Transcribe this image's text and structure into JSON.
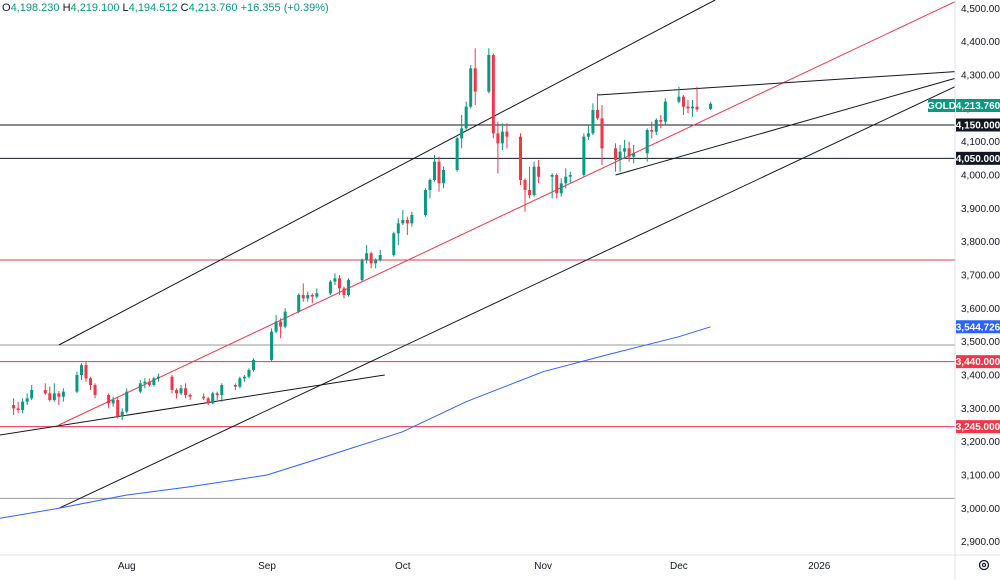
{
  "header": {
    "open_key": "O",
    "open": "4,198.230",
    "high_key": "H",
    "high": "4,219.100",
    "low_key": "L",
    "low": "4,194.512",
    "close_key": "C",
    "close": "4,213.760",
    "change": "+16.355 (+0.39%)"
  },
  "symbol_tag": {
    "label": "GOLD",
    "value": "4,213.760",
    "color": "#089981"
  },
  "colors": {
    "up": "#089981",
    "down": "#f23645",
    "ma": "#2962ff",
    "trend": "#131722",
    "level_red": "#f23645",
    "grid": "#e0e3eb"
  },
  "x_axis_labels": [
    {
      "label": "Aug",
      "date": "2025-08-01"
    },
    {
      "label": "Sep",
      "date": "2025-09-01"
    },
    {
      "label": "Oct",
      "date": "2025-10-01"
    },
    {
      "label": "Nov",
      "date": "2025-11-01"
    },
    {
      "label": "Dec",
      "date": "2025-12-01"
    },
    {
      "label": "2026",
      "date": "2026-01-01"
    }
  ],
  "y_axis_labels": [
    "4,500.000",
    "4,400.000",
    "4,300.000",
    "4,200.000",
    "4,100.000",
    "4,000.000",
    "3,900.000",
    "3,800.000",
    "3,700.000",
    "3,600.000",
    "3,500.000",
    "3,400.000",
    "3,300.000",
    "3,200.000",
    "3,100.000",
    "3,000.000",
    "2,900.000"
  ],
  "price_tags": [
    {
      "value": "4,150.000",
      "bg": "#131722"
    },
    {
      "value": "4,050.000",
      "bg": "#131722"
    },
    {
      "value": "3,544.726",
      "bg": "#2962ff"
    },
    {
      "value": "3,440.000",
      "bg": "#f23645"
    },
    {
      "value": "3,245.000",
      "bg": "#f23645"
    }
  ],
  "chart_data": {
    "type": "candlestick",
    "y_range": [
      2860,
      4525
    ],
    "x_range": [
      "2025-07-04",
      "2026-01-31"
    ],
    "series": [
      {
        "date": "2025-07-07",
        "o": 3310,
        "h": 3330,
        "l": 3280,
        "c": 3300
      },
      {
        "date": "2025-07-08",
        "o": 3300,
        "h": 3320,
        "l": 3285,
        "c": 3295
      },
      {
        "date": "2025-07-09",
        "o": 3295,
        "h": 3330,
        "l": 3285,
        "c": 3320
      },
      {
        "date": "2025-07-10",
        "o": 3320,
        "h": 3345,
        "l": 3310,
        "c": 3330
      },
      {
        "date": "2025-07-11",
        "o": 3330,
        "h": 3370,
        "l": 3325,
        "c": 3355
      },
      {
        "date": "2025-07-14",
        "o": 3355,
        "h": 3375,
        "l": 3340,
        "c": 3345
      },
      {
        "date": "2025-07-15",
        "o": 3345,
        "h": 3365,
        "l": 3320,
        "c": 3325
      },
      {
        "date": "2025-07-16",
        "o": 3325,
        "h": 3375,
        "l": 3320,
        "c": 3345
      },
      {
        "date": "2025-07-17",
        "o": 3345,
        "h": 3352,
        "l": 3310,
        "c": 3335
      },
      {
        "date": "2025-07-18",
        "o": 3335,
        "h": 3360,
        "l": 3320,
        "c": 3350
      },
      {
        "date": "2025-07-21",
        "o": 3350,
        "h": 3410,
        "l": 3345,
        "c": 3400
      },
      {
        "date": "2025-07-22",
        "o": 3400,
        "h": 3435,
        "l": 3385,
        "c": 3430
      },
      {
        "date": "2025-07-23",
        "o": 3430,
        "h": 3440,
        "l": 3380,
        "c": 3390
      },
      {
        "date": "2025-07-24",
        "o": 3390,
        "h": 3395,
        "l": 3355,
        "c": 3370
      },
      {
        "date": "2025-07-25",
        "o": 3370,
        "h": 3375,
        "l": 3330,
        "c": 3340
      },
      {
        "date": "2025-07-28",
        "o": 3340,
        "h": 3345,
        "l": 3300,
        "c": 3315
      },
      {
        "date": "2025-07-29",
        "o": 3315,
        "h": 3335,
        "l": 3305,
        "c": 3325
      },
      {
        "date": "2025-07-30",
        "o": 3325,
        "h": 3335,
        "l": 3270,
        "c": 3275
      },
      {
        "date": "2025-07-31",
        "o": 3275,
        "h": 3300,
        "l": 3265,
        "c": 3290
      },
      {
        "date": "2025-08-01",
        "o": 3290,
        "h": 3360,
        "l": 3285,
        "c": 3350
      },
      {
        "date": "2025-08-04",
        "o": 3350,
        "h": 3385,
        "l": 3345,
        "c": 3375
      },
      {
        "date": "2025-08-05",
        "o": 3375,
        "h": 3390,
        "l": 3360,
        "c": 3380
      },
      {
        "date": "2025-08-06",
        "o": 3380,
        "h": 3390,
        "l": 3365,
        "c": 3370
      },
      {
        "date": "2025-08-07",
        "o": 3370,
        "h": 3395,
        "l": 3365,
        "c": 3390
      },
      {
        "date": "2025-08-08",
        "o": 3390,
        "h": 3405,
        "l": 3380,
        "c": 3395
      },
      {
        "date": "2025-08-11",
        "o": 3395,
        "h": 3400,
        "l": 3345,
        "c": 3355
      },
      {
        "date": "2025-08-12",
        "o": 3355,
        "h": 3360,
        "l": 3330,
        "c": 3345
      },
      {
        "date": "2025-08-13",
        "o": 3345,
        "h": 3370,
        "l": 3340,
        "c": 3360
      },
      {
        "date": "2025-08-14",
        "o": 3360,
        "h": 3375,
        "l": 3330,
        "c": 3340
      },
      {
        "date": "2025-08-15",
        "o": 3340,
        "h": 3345,
        "l": 3325,
        "c": 3335
      },
      {
        "date": "2025-08-18",
        "o": 3335,
        "h": 3345,
        "l": 3325,
        "c": 3330
      },
      {
        "date": "2025-08-19",
        "o": 3330,
        "h": 3335,
        "l": 3310,
        "c": 3315
      },
      {
        "date": "2025-08-20",
        "o": 3315,
        "h": 3350,
        "l": 3312,
        "c": 3345
      },
      {
        "date": "2025-08-21",
        "o": 3345,
        "h": 3350,
        "l": 3325,
        "c": 3340
      },
      {
        "date": "2025-08-22",
        "o": 3340,
        "h": 3375,
        "l": 3320,
        "c": 3370
      },
      {
        "date": "2025-08-25",
        "o": 3370,
        "h": 3375,
        "l": 3355,
        "c": 3365
      },
      {
        "date": "2025-08-26",
        "o": 3365,
        "h": 3395,
        "l": 3360,
        "c": 3390
      },
      {
        "date": "2025-08-27",
        "o": 3390,
        "h": 3400,
        "l": 3380,
        "c": 3395
      },
      {
        "date": "2025-08-28",
        "o": 3395,
        "h": 3420,
        "l": 3390,
        "c": 3415
      },
      {
        "date": "2025-08-29",
        "o": 3415,
        "h": 3450,
        "l": 3410,
        "c": 3445
      },
      {
        "date": "2025-09-02",
        "o": 3445,
        "h": 3540,
        "l": 3440,
        "c": 3530
      },
      {
        "date": "2025-09-03",
        "o": 3530,
        "h": 3580,
        "l": 3525,
        "c": 3560
      },
      {
        "date": "2025-09-04",
        "o": 3560,
        "h": 3570,
        "l": 3510,
        "c": 3545
      },
      {
        "date": "2025-09-05",
        "o": 3545,
        "h": 3600,
        "l": 3540,
        "c": 3590
      },
      {
        "date": "2025-09-08",
        "o": 3590,
        "h": 3645,
        "l": 3585,
        "c": 3640
      },
      {
        "date": "2025-09-09",
        "o": 3640,
        "h": 3675,
        "l": 3620,
        "c": 3630
      },
      {
        "date": "2025-09-10",
        "o": 3630,
        "h": 3650,
        "l": 3620,
        "c": 3640
      },
      {
        "date": "2025-09-11",
        "o": 3640,
        "h": 3645,
        "l": 3615,
        "c": 3635
      },
      {
        "date": "2025-09-12",
        "o": 3635,
        "h": 3660,
        "l": 3630,
        "c": 3645
      },
      {
        "date": "2025-09-15",
        "o": 3645,
        "h": 3685,
        "l": 3640,
        "c": 3680
      },
      {
        "date": "2025-09-16",
        "o": 3680,
        "h": 3705,
        "l": 3670,
        "c": 3690
      },
      {
        "date": "2025-09-17",
        "o": 3690,
        "h": 3700,
        "l": 3640,
        "c": 3660
      },
      {
        "date": "2025-09-18",
        "o": 3660,
        "h": 3665,
        "l": 3630,
        "c": 3640
      },
      {
        "date": "2025-09-19",
        "o": 3640,
        "h": 3690,
        "l": 3635,
        "c": 3685
      },
      {
        "date": "2025-09-22",
        "o": 3685,
        "h": 3750,
        "l": 3680,
        "c": 3745
      },
      {
        "date": "2025-09-23",
        "o": 3745,
        "h": 3790,
        "l": 3735,
        "c": 3765
      },
      {
        "date": "2025-09-24",
        "o": 3765,
        "h": 3770,
        "l": 3720,
        "c": 3735
      },
      {
        "date": "2025-09-25",
        "o": 3735,
        "h": 3750,
        "l": 3720,
        "c": 3745
      },
      {
        "date": "2025-09-26",
        "o": 3745,
        "h": 3775,
        "l": 3740,
        "c": 3760
      },
      {
        "date": "2025-09-29",
        "o": 3760,
        "h": 3830,
        "l": 3755,
        "c": 3825
      },
      {
        "date": "2025-09-30",
        "o": 3825,
        "h": 3870,
        "l": 3790,
        "c": 3855
      },
      {
        "date": "2025-10-01",
        "o": 3855,
        "h": 3895,
        "l": 3850,
        "c": 3865
      },
      {
        "date": "2025-10-02",
        "o": 3865,
        "h": 3875,
        "l": 3820,
        "c": 3855
      },
      {
        "date": "2025-10-03",
        "o": 3855,
        "h": 3890,
        "l": 3845,
        "c": 3880
      },
      {
        "date": "2025-10-06",
        "o": 3880,
        "h": 3960,
        "l": 3875,
        "c": 3955
      },
      {
        "date": "2025-10-07",
        "o": 3955,
        "h": 3990,
        "l": 3930,
        "c": 3985
      },
      {
        "date": "2025-10-08",
        "o": 3985,
        "h": 4060,
        "l": 3980,
        "c": 4040
      },
      {
        "date": "2025-10-09",
        "o": 4040,
        "h": 4055,
        "l": 3950,
        "c": 3975
      },
      {
        "date": "2025-10-10",
        "o": 3975,
        "h": 4025,
        "l": 3960,
        "c": 4015
      },
      {
        "date": "2025-10-13",
        "o": 4015,
        "h": 4115,
        "l": 4010,
        "c": 4110
      },
      {
        "date": "2025-10-14",
        "o": 4110,
        "h": 4180,
        "l": 4080,
        "c": 4140
      },
      {
        "date": "2025-10-15",
        "o": 4140,
        "h": 4220,
        "l": 4135,
        "c": 4205
      },
      {
        "date": "2025-10-16",
        "o": 4205,
        "h": 4330,
        "l": 4200,
        "c": 4320
      },
      {
        "date": "2025-10-17",
        "o": 4320,
        "h": 4380,
        "l": 4210,
        "c": 4250
      },
      {
        "date": "2025-10-20",
        "o": 4250,
        "h": 4380,
        "l": 4245,
        "c": 4360
      },
      {
        "date": "2025-10-21",
        "o": 4360,
        "h": 4365,
        "l": 4110,
        "c": 4125
      },
      {
        "date": "2025-10-22",
        "o": 4125,
        "h": 4160,
        "l": 4005,
        "c": 4095
      },
      {
        "date": "2025-10-23",
        "o": 4095,
        "h": 4155,
        "l": 4075,
        "c": 4130
      },
      {
        "date": "2025-10-24",
        "o": 4130,
        "h": 4155,
        "l": 4080,
        "c": 4115
      },
      {
        "date": "2025-10-27",
        "o": 4115,
        "h": 4125,
        "l": 3970,
        "c": 3985
      },
      {
        "date": "2025-10-28",
        "o": 3985,
        "h": 3990,
        "l": 3890,
        "c": 3955
      },
      {
        "date": "2025-10-29",
        "o": 3955,
        "h": 4025,
        "l": 3930,
        "c": 3940
      },
      {
        "date": "2025-10-30",
        "o": 3940,
        "h": 4040,
        "l": 3935,
        "c": 4025
      },
      {
        "date": "2025-10-31",
        "o": 4025,
        "h": 4045,
        "l": 3975,
        "c": 3995
      },
      {
        "date": "2025-11-03",
        "o": 3995,
        "h": 4005,
        "l": 3930,
        "c": 4000
      },
      {
        "date": "2025-11-04",
        "o": 4000,
        "h": 4005,
        "l": 3930,
        "c": 3945
      },
      {
        "date": "2025-11-05",
        "o": 3945,
        "h": 3990,
        "l": 3935,
        "c": 3975
      },
      {
        "date": "2025-11-06",
        "o": 3975,
        "h": 4020,
        "l": 3960,
        "c": 3995
      },
      {
        "date": "2025-11-07",
        "o": 3995,
        "h": 4010,
        "l": 3975,
        "c": 4000
      },
      {
        "date": "2025-11-10",
        "o": 4000,
        "h": 4125,
        "l": 3995,
        "c": 4115
      },
      {
        "date": "2025-11-11",
        "o": 4115,
        "h": 4150,
        "l": 4105,
        "c": 4125
      },
      {
        "date": "2025-11-12",
        "o": 4125,
        "h": 4215,
        "l": 4120,
        "c": 4195
      },
      {
        "date": "2025-11-13",
        "o": 4195,
        "h": 4245,
        "l": 4165,
        "c": 4170
      },
      {
        "date": "2025-11-14",
        "o": 4170,
        "h": 4210,
        "l": 4030,
        "c": 4080
      },
      {
        "date": "2025-11-17",
        "o": 4080,
        "h": 4095,
        "l": 4010,
        "c": 4045
      },
      {
        "date": "2025-11-18",
        "o": 4045,
        "h": 4090,
        "l": 4010,
        "c": 4070
      },
      {
        "date": "2025-11-19",
        "o": 4070,
        "h": 4105,
        "l": 4050,
        "c": 4080
      },
      {
        "date": "2025-11-20",
        "o": 4080,
        "h": 4100,
        "l": 4040,
        "c": 4055
      },
      {
        "date": "2025-11-21",
        "o": 4055,
        "h": 4090,
        "l": 4035,
        "c": 4065
      },
      {
        "date": "2025-11-24",
        "o": 4065,
        "h": 4140,
        "l": 4040,
        "c": 4135
      },
      {
        "date": "2025-11-25",
        "o": 4135,
        "h": 4160,
        "l": 4110,
        "c": 4130
      },
      {
        "date": "2025-11-26",
        "o": 4130,
        "h": 4170,
        "l": 4120,
        "c": 4165
      },
      {
        "date": "2025-11-27",
        "o": 4165,
        "h": 4180,
        "l": 4140,
        "c": 4160
      },
      {
        "date": "2025-11-28",
        "o": 4160,
        "h": 4230,
        "l": 4150,
        "c": 4220
      },
      {
        "date": "2025-12-01",
        "o": 4220,
        "h": 4265,
        "l": 4215,
        "c": 4235
      },
      {
        "date": "2025-12-02",
        "o": 4235,
        "h": 4240,
        "l": 4180,
        "c": 4205
      },
      {
        "date": "2025-12-03",
        "o": 4205,
        "h": 4225,
        "l": 4185,
        "c": 4200
      },
      {
        "date": "2025-12-04",
        "o": 4200,
        "h": 4225,
        "l": 4175,
        "c": 4205
      },
      {
        "date": "2025-12-05",
        "o": 4205,
        "h": 4265,
        "l": 4190,
        "c": 4197
      },
      {
        "date": "2025-12-08",
        "o": 4198.23,
        "h": 4219.1,
        "l": 4194.512,
        "c": 4213.76
      }
    ],
    "moving_average": [
      {
        "date": "2025-07-04",
        "value": 2970
      },
      {
        "date": "2025-07-17",
        "value": 3000
      },
      {
        "date": "2025-08-01",
        "value": 3040
      },
      {
        "date": "2025-08-15",
        "value": 3065
      },
      {
        "date": "2025-09-01",
        "value": 3100
      },
      {
        "date": "2025-09-15",
        "value": 3160
      },
      {
        "date": "2025-10-01",
        "value": 3230
      },
      {
        "date": "2025-10-15",
        "value": 3320
      },
      {
        "date": "2025-11-01",
        "value": 3410
      },
      {
        "date": "2025-11-15",
        "value": 3460
      },
      {
        "date": "2025-12-01",
        "value": 3515
      },
      {
        "date": "2025-12-08",
        "value": 3544.726
      }
    ],
    "horizontal_levels": [
      {
        "value": 4150,
        "color": "#131722"
      },
      {
        "value": 4050,
        "color": "#131722"
      },
      {
        "value": 3745,
        "color": "#f23645"
      },
      {
        "value": 3440,
        "color": "#f23645"
      },
      {
        "value": 3245,
        "color": "#f23645"
      },
      {
        "value": 3490,
        "color": "#9598a1"
      },
      {
        "value": 3030,
        "color": "#9598a1"
      }
    ],
    "trend_lines": [
      {
        "color": "#131722",
        "from": [
          "2025-07-17",
          3490
        ],
        "to": [
          "2025-12-09",
          4525
        ]
      },
      {
        "color": "#131722",
        "from": [
          "2025-07-17",
          3000
        ],
        "to": [
          "2026-01-31",
          4265
        ]
      },
      {
        "color": "#f23645",
        "from": [
          "2025-07-17",
          3250
        ],
        "to": [
          "2026-01-31",
          4520
        ]
      },
      {
        "color": "#131722",
        "from": [
          "2025-07-04",
          3220
        ],
        "to": [
          "2025-09-27",
          3400
        ]
      },
      {
        "color": "#131722",
        "from": [
          "2025-11-13",
          4240
        ],
        "to": [
          "2026-01-31",
          4310
        ]
      },
      {
        "color": "#131722",
        "from": [
          "2025-11-17",
          4000
        ],
        "to": [
          "2026-01-31",
          4290
        ]
      }
    ]
  }
}
